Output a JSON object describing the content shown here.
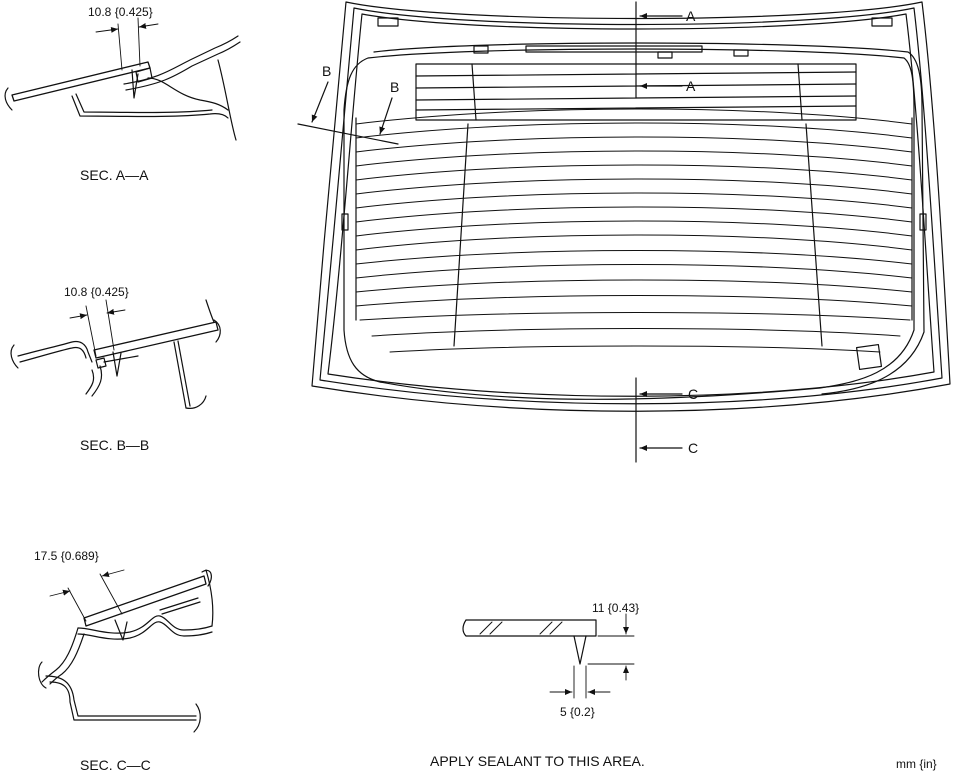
{
  "sections": {
    "aa": {
      "title": "SEC. A—A",
      "dimension": "10.8 {0.425}"
    },
    "bb": {
      "title": "SEC. B—B",
      "dimension": "10.8 {0.425}"
    },
    "cc": {
      "title": "SEC. C—C",
      "dimension": "17.5 {0.689}"
    }
  },
  "window_view": {
    "cut_labels": {
      "a_upper": "A",
      "a_lower": "A",
      "b_outer": "B",
      "b_inner": "B",
      "c_upper": "C",
      "c_lower": "C"
    }
  },
  "sealant_detail": {
    "height_dimension": "11 {0.43}",
    "width_dimension": "5 {0.2}",
    "instruction": "APPLY SEALANT TO THIS AREA."
  },
  "units_note": "mm {in}"
}
